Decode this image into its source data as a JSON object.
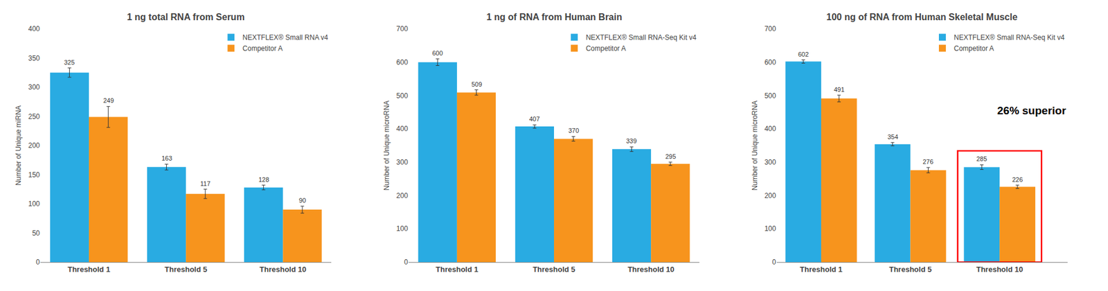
{
  "chart_data": [
    {
      "type": "bar",
      "title": "1 ng total RNA from Serum",
      "ylabel": "Number of Unique miRNA",
      "categories": [
        "Threshold 1",
        "Threshold 5",
        "Threshold 10"
      ],
      "series": [
        {
          "name": "NEXTFLEX® Small RNA v4",
          "color": "#29ABE2",
          "values": [
            325,
            163,
            128
          ],
          "errors": [
            8,
            5,
            4
          ]
        },
        {
          "name": "Competitor A",
          "color": "#F7941D",
          "values": [
            249,
            117,
            90
          ],
          "errors": [
            18,
            8,
            6
          ]
        }
      ],
      "ylim": [
        0,
        400
      ],
      "yticks": [
        0,
        50,
        100,
        150,
        200,
        250,
        300,
        350,
        400
      ],
      "grid": false,
      "legend": "upper right",
      "data_labels": true
    },
    {
      "type": "bar",
      "title": "1 ng of RNA from Human Brain",
      "ylabel": "Number of Unique microRNA",
      "categories": [
        "Threshold 1",
        "Threshold 5",
        "Threshold 10"
      ],
      "series": [
        {
          "name": "NEXTFLEX® Small RNA-Seq Kit v4",
          "color": "#29ABE2",
          "values": [
            600,
            407,
            339
          ],
          "errors": [
            10,
            5,
            7
          ]
        },
        {
          "name": "Competitor A",
          "color": "#F7941D",
          "values": [
            509,
            370,
            295
          ],
          "errors": [
            8,
            7,
            5
          ]
        }
      ],
      "ylim": [
        0,
        700
      ],
      "yticks": [
        0,
        100,
        200,
        300,
        400,
        500,
        600,
        700
      ],
      "grid": false,
      "legend": "upper right",
      "data_labels": true
    },
    {
      "type": "bar",
      "title": "100 ng of RNA from Human Skeletal Muscle",
      "ylabel": "Number of Unique microRNA",
      "categories": [
        "Threshold 1",
        "Threshold 5",
        "Threshold 10"
      ],
      "series": [
        {
          "name": "NEXTFLEX® Small RNA-Seq Kit v4",
          "color": "#29ABE2",
          "values": [
            602,
            354,
            285
          ],
          "errors": [
            5,
            5,
            7
          ]
        },
        {
          "name": "Competitor A",
          "color": "#F7941D",
          "values": [
            491,
            276,
            226
          ],
          "errors": [
            10,
            8,
            5
          ]
        }
      ],
      "ylim": [
        0,
        700
      ],
      "yticks": [
        0,
        100,
        200,
        300,
        400,
        500,
        600,
        700
      ],
      "grid": false,
      "legend": "upper right",
      "data_labels": true,
      "annotation": "26% superior",
      "highlight": {
        "category": "Threshold 10",
        "color": "#FF0000"
      }
    }
  ]
}
